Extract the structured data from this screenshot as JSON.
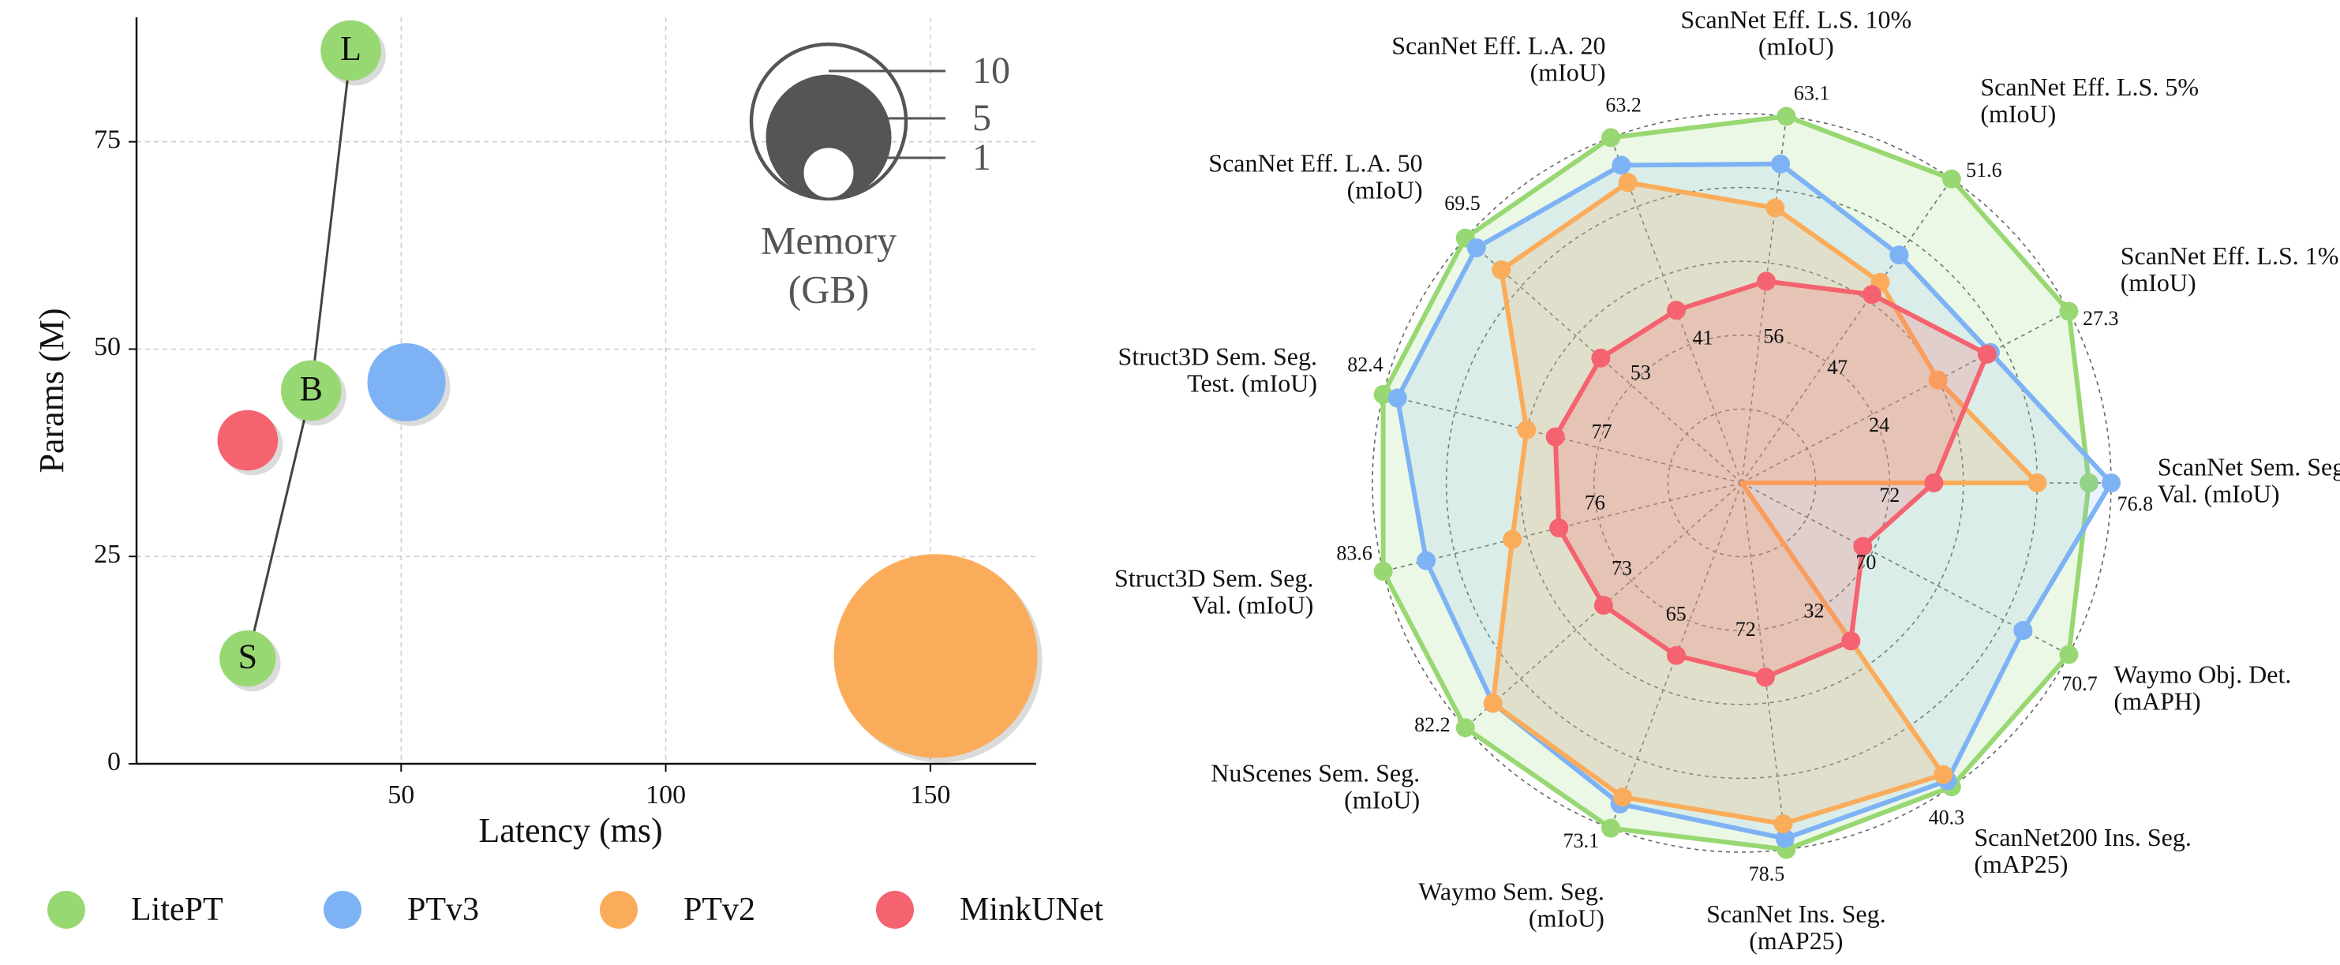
{
  "colors": {
    "LitePT": "#98d873",
    "PTv3": "#7db3f5",
    "PTv2": "#fbac5a",
    "MinkUNet": "#f4636f",
    "grid": "#cccccc",
    "memory_legend": "#555555"
  },
  "legend": [
    {
      "name": "LitePT",
      "color": "#98d873"
    },
    {
      "name": "PTv3",
      "color": "#7db3f5"
    },
    {
      "name": "PTv2",
      "color": "#fbac5a"
    },
    {
      "name": "MinkUNet",
      "color": "#f4636f"
    }
  ],
  "chart_data": [
    {
      "type": "scatter",
      "xlabel": "Latency (ms)",
      "ylabel": "Params (M)",
      "xlim": [
        0,
        170
      ],
      "ylim": [
        0,
        90
      ],
      "xticks": [
        50,
        100,
        150
      ],
      "yticks": [
        0,
        25,
        50,
        75
      ],
      "grid": true,
      "memory_legend": {
        "title_line1": "Memory",
        "title_line2": "(GB)",
        "values": [
          10,
          5,
          1
        ],
        "labels": [
          "10",
          "5",
          "1"
        ]
      },
      "litept_line": [
        "S",
        "B",
        "L"
      ],
      "points": [
        {
          "series": "LitePT",
          "label": "L",
          "latency": 40.5,
          "params": 86,
          "memory": 1.5
        },
        {
          "series": "LitePT",
          "label": "B",
          "latency": 33,
          "params": 45,
          "memory": 1.5
        },
        {
          "series": "LitePT",
          "label": "S",
          "latency": 21,
          "params": 12.7,
          "memory": 1.3
        },
        {
          "series": "PTv3",
          "label": "",
          "latency": 51,
          "params": 46,
          "memory": 2.5
        },
        {
          "series": "MinkUNet",
          "label": "",
          "latency": 21,
          "params": 39,
          "memory": 1.5
        },
        {
          "series": "PTv2",
          "label": "",
          "latency": 151,
          "params": 13,
          "memory": 17
        }
      ]
    },
    {
      "type": "radar",
      "rings": 5,
      "axes": [
        {
          "name": "ScanNet Sem. Seg. Val. (mIoU)",
          "label_lines": [
            "ScanNet Sem. Seg.",
            "Val. (mIoU)"
          ],
          "max_label": "76.8",
          "min_label": "72"
        },
        {
          "name": "ScanNet Eff. L.S. 1% (mIoU)",
          "label_lines": [
            "ScanNet Eff. L.S. 1%",
            "(mIoU)"
          ],
          "max_label": "27.3",
          "min_label": "24"
        },
        {
          "name": "ScanNet Eff. L.S. 5% (mIoU)",
          "label_lines": [
            "ScanNet Eff. L.S. 5%",
            "(mIoU)"
          ],
          "max_label": "51.6",
          "min_label": "47"
        },
        {
          "name": "ScanNet Eff. L.S. 10% (mIoU)",
          "label_lines": [
            "ScanNet Eff. L.S. 10%",
            "(mIoU)"
          ],
          "max_label": "63.1",
          "min_label": "56"
        },
        {
          "name": "ScanNet Eff. L.A. 20 (mIoU)",
          "label_lines": [
            "ScanNet Eff. L.A. 20",
            "(mIoU)"
          ],
          "max_label": "63.2",
          "min_label": "41"
        },
        {
          "name": "ScanNet Eff. L.A. 50 (mIoU)",
          "label_lines": [
            "ScanNet Eff. L.A. 50",
            "(mIoU)"
          ],
          "max_label": "69.5",
          "min_label": "53"
        },
        {
          "name": "Struct3D Sem. Seg. Test. (mIoU)",
          "label_lines": [
            "Struct3D Sem. Seg.",
            "Test. (mIoU)"
          ],
          "max_label": "82.4",
          "min_label": "77"
        },
        {
          "name": "Struct3D Sem. Seg. Val. (mIoU)",
          "label_lines": [
            "Struct3D Sem. Seg.",
            "Val. (mIoU)"
          ],
          "max_label": "83.6",
          "min_label": "76"
        },
        {
          "name": "NuScenes Sem. Seg. (mIoU)",
          "label_lines": [
            "NuScenes Sem. Seg.",
            "(mIoU)"
          ],
          "max_label": "82.2",
          "min_label": "73"
        },
        {
          "name": "Waymo Sem. Seg. (mIoU)",
          "label_lines": [
            "Waymo Sem. Seg.",
            "(mIoU)"
          ],
          "max_label": "73.1",
          "min_label": "65"
        },
        {
          "name": "ScanNet Ins. Seg. (mAP25)",
          "label_lines": [
            "ScanNet Ins. Seg.",
            "(mAP25)"
          ],
          "max_label": "78.5",
          "min_label": "72"
        },
        {
          "name": "ScanNet200 Ins. Seg. (mAP25)",
          "label_lines": [
            "ScanNet200 Ins. Seg.",
            "(mAP25)"
          ],
          "max_label": "40.3",
          "min_label": "32"
        },
        {
          "name": "Waymo Obj. Det. (mAPH)",
          "label_lines": [
            "Waymo Obj. Det.",
            "(mAPH)"
          ],
          "max_label": "70.7",
          "min_label": "70"
        }
      ],
      "series": [
        {
          "name": "LitePT",
          "values": [
            0.94,
            1.0,
            1.0,
            1.0,
            1.0,
            1.0,
            1.0,
            1.0,
            1.0,
            1.0,
            1.0,
            1.0,
            1.0
          ]
        },
        {
          "name": "PTv3",
          "values": [
            1.0,
            0.76,
            0.75,
            0.87,
            0.92,
            0.96,
            0.96,
            0.88,
            0.9,
            0.93,
            0.97,
            0.98,
            0.86
          ]
        },
        {
          "name": "PTv2",
          "values": [
            0.8,
            0.6,
            0.66,
            0.75,
            0.87,
            0.87,
            0.6,
            0.64,
            0.9,
            0.91,
            0.93,
            0.96,
            null
          ]
        },
        {
          "name": "MinkUNet",
          "values": [
            0.52,
            0.75,
            0.62,
            0.55,
            0.5,
            0.51,
            0.52,
            0.51,
            0.5,
            0.5,
            0.53,
            0.52,
            0.37
          ]
        }
      ]
    }
  ]
}
